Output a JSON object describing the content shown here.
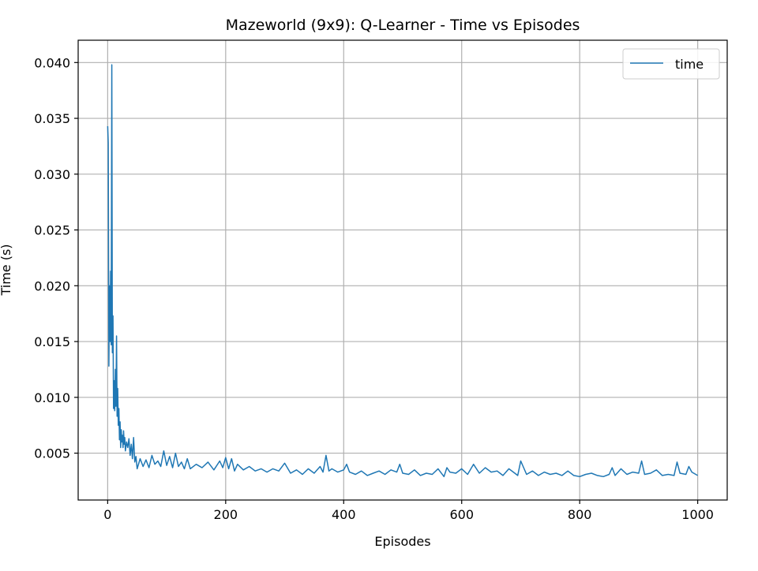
{
  "chart_data": {
    "type": "line",
    "title": "Mazeworld (9x9): Q-Learner - Time vs Episodes",
    "xlabel": "Episodes",
    "ylabel": "Time (s)",
    "xlim": [
      -50,
      1050
    ],
    "ylim": [
      0.0008,
      0.042
    ],
    "xticks": [
      0,
      200,
      400,
      600,
      800,
      1000
    ],
    "yticks": [
      0.005,
      0.01,
      0.015,
      0.02,
      0.025,
      0.03,
      0.035,
      0.04
    ],
    "xtick_labels": [
      "0",
      "200",
      "400",
      "600",
      "800",
      "1000"
    ],
    "ytick_labels": [
      "0.005",
      "0.010",
      "0.015",
      "0.020",
      "0.025",
      "0.030",
      "0.035",
      "0.040"
    ],
    "grid": true,
    "legend_position": "top-right",
    "series": [
      {
        "name": "time",
        "color": "#1f77b4",
        "x": [
          0,
          1,
          2,
          3,
          4,
          5,
          6,
          7,
          8,
          9,
          10,
          11,
          12,
          13,
          14,
          15,
          16,
          17,
          18,
          19,
          20,
          21,
          22,
          23,
          24,
          25,
          26,
          27,
          28,
          29,
          30,
          32,
          34,
          36,
          38,
          40,
          42,
          44,
          46,
          48,
          50,
          55,
          60,
          65,
          70,
          75,
          80,
          85,
          90,
          95,
          100,
          105,
          110,
          115,
          120,
          125,
          130,
          135,
          140,
          150,
          160,
          170,
          180,
          190,
          195,
          200,
          205,
          210,
          215,
          220,
          230,
          240,
          250,
          260,
          270,
          280,
          290,
          300,
          310,
          320,
          330,
          340,
          350,
          360,
          365,
          370,
          375,
          380,
          390,
          400,
          405,
          410,
          420,
          430,
          440,
          450,
          460,
          470,
          480,
          490,
          495,
          500,
          510,
          520,
          530,
          540,
          550,
          560,
          570,
          575,
          580,
          590,
          600,
          610,
          620,
          630,
          640,
          650,
          660,
          670,
          680,
          690,
          695,
          700,
          710,
          720,
          730,
          740,
          750,
          760,
          770,
          780,
          790,
          800,
          810,
          820,
          830,
          840,
          850,
          855,
          860,
          870,
          880,
          890,
          900,
          905,
          910,
          920,
          930,
          940,
          950,
          960,
          965,
          970,
          980,
          985,
          990,
          1000
        ],
        "y": [
          0.0343,
          0.0328,
          0.0128,
          0.02,
          0.015,
          0.0213,
          0.0147,
          0.0398,
          0.014,
          0.0173,
          0.009,
          0.0115,
          0.0088,
          0.0125,
          0.0092,
          0.0155,
          0.0083,
          0.0108,
          0.0075,
          0.009,
          0.0062,
          0.0078,
          0.0055,
          0.0071,
          0.006,
          0.0066,
          0.0055,
          0.007,
          0.0058,
          0.0064,
          0.0052,
          0.006,
          0.0055,
          0.0063,
          0.0048,
          0.0058,
          0.0045,
          0.0064,
          0.0042,
          0.0047,
          0.0036,
          0.0045,
          0.0038,
          0.0044,
          0.0037,
          0.0048,
          0.004,
          0.0043,
          0.0038,
          0.0052,
          0.0039,
          0.0047,
          0.0037,
          0.005,
          0.0038,
          0.0042,
          0.0036,
          0.0045,
          0.0036,
          0.004,
          0.0037,
          0.0042,
          0.0035,
          0.0043,
          0.0037,
          0.0046,
          0.0036,
          0.0045,
          0.0034,
          0.004,
          0.0035,
          0.0038,
          0.0034,
          0.0036,
          0.0033,
          0.0036,
          0.0034,
          0.0041,
          0.0032,
          0.0035,
          0.0031,
          0.0036,
          0.0032,
          0.0038,
          0.0033,
          0.0048,
          0.0034,
          0.0036,
          0.0033,
          0.0035,
          0.004,
          0.0033,
          0.0031,
          0.0034,
          0.003,
          0.0032,
          0.0034,
          0.0031,
          0.0035,
          0.0033,
          0.004,
          0.0032,
          0.0031,
          0.0035,
          0.003,
          0.0032,
          0.0031,
          0.0036,
          0.0029,
          0.0037,
          0.0033,
          0.0032,
          0.0036,
          0.0031,
          0.004,
          0.0032,
          0.0037,
          0.0033,
          0.0034,
          0.003,
          0.0036,
          0.0032,
          0.003,
          0.0043,
          0.0031,
          0.0034,
          0.003,
          0.0033,
          0.0031,
          0.0032,
          0.003,
          0.0034,
          0.003,
          0.0029,
          0.0031,
          0.0032,
          0.003,
          0.0029,
          0.0031,
          0.0037,
          0.003,
          0.0036,
          0.0031,
          0.0033,
          0.0032,
          0.0043,
          0.0031,
          0.0032,
          0.0035,
          0.003,
          0.0031,
          0.003,
          0.0042,
          0.0032,
          0.0031,
          0.0038,
          0.0033,
          0.003
        ]
      }
    ]
  }
}
